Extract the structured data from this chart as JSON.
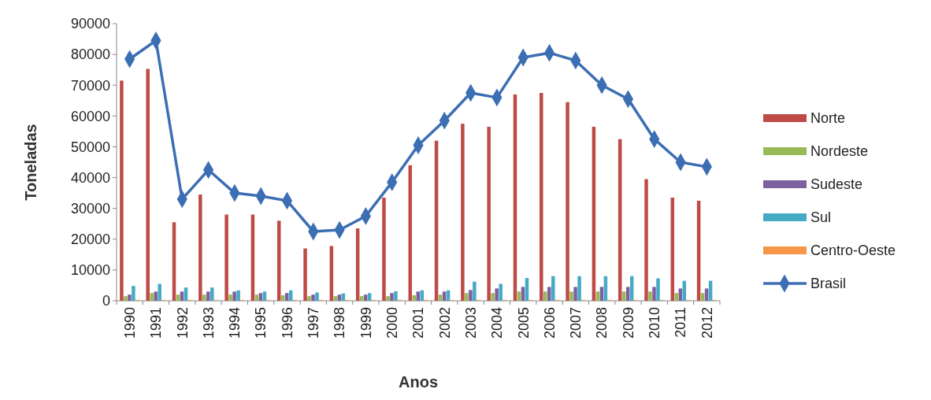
{
  "chart_data": {
    "type": "bar",
    "xlabel": "Anos",
    "ylabel": "Toneladas",
    "categories": [
      "1990",
      "1991",
      "1992",
      "1993",
      "1994",
      "1995",
      "1996",
      "1997",
      "1998",
      "1999",
      "2000",
      "2001",
      "2002",
      "2003",
      "2004",
      "2005",
      "2006",
      "2007",
      "2008",
      "2009",
      "2010",
      "2011",
      "2012"
    ],
    "series": [
      {
        "name": "Norte",
        "color": "#be4b48",
        "values": [
          71500,
          75300,
          25500,
          34500,
          28000,
          28000,
          26000,
          17000,
          17800,
          23500,
          33500,
          44000,
          52000,
          57500,
          56500,
          67000,
          67500,
          64500,
          56500,
          52500,
          39500,
          33500,
          32500
        ]
      },
      {
        "name": "Nordeste",
        "color": "#98b954",
        "values": [
          1500,
          2500,
          2000,
          2000,
          2000,
          2000,
          1800,
          1500,
          1500,
          1500,
          1500,
          1800,
          2000,
          2500,
          2500,
          3000,
          3000,
          3000,
          3000,
          3000,
          3000,
          2500,
          2500
        ]
      },
      {
        "name": "Sudeste",
        "color": "#7d60a0",
        "values": [
          2000,
          3000,
          3000,
          3000,
          3000,
          2500,
          2500,
          2000,
          2000,
          2000,
          2500,
          3000,
          3000,
          3500,
          4000,
          4500,
          4500,
          4500,
          4500,
          4500,
          4500,
          4000,
          4000
        ]
      },
      {
        "name": "Sul",
        "color": "#46aac5",
        "values": [
          4800,
          5500,
          4300,
          4300,
          3400,
          3000,
          3400,
          2700,
          2400,
          2500,
          3100,
          3400,
          3400,
          6200,
          5500,
          7400,
          8000,
          8000,
          8000,
          8000,
          7300,
          6500,
          6500
        ]
      },
      {
        "name": "Centro-Oeste",
        "color": "#f79646",
        "values": [
          300,
          300,
          300,
          300,
          300,
          300,
          300,
          300,
          300,
          300,
          300,
          300,
          300,
          300,
          300,
          300,
          300,
          300,
          300,
          300,
          300,
          300,
          300
        ]
      },
      {
        "name": "Brasil",
        "type": "line",
        "color": "#3c6eb4",
        "values": [
          78500,
          84500,
          33000,
          42500,
          35000,
          34000,
          32500,
          22500,
          23000,
          27500,
          38500,
          50500,
          58500,
          67500,
          66000,
          79000,
          80500,
          78000,
          70000,
          65500,
          52500,
          45000,
          43500
        ]
      }
    ],
    "ylim": [
      0,
      90000
    ],
    "yticks": [
      0,
      10000,
      20000,
      30000,
      40000,
      50000,
      60000,
      70000,
      80000,
      90000
    ],
    "legend": "right",
    "marker": "diamond",
    "line_style": "solid"
  }
}
